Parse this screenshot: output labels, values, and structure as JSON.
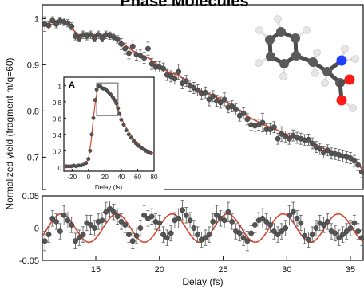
{
  "figure": {
    "title_fragment": "Phase Molecules"
  },
  "chart_data": [
    {
      "id": "main",
      "type": "scatter",
      "xlabel": "",
      "ylabel": "Normalized yield (fragment m/q=60)",
      "xlim": [
        10.8,
        36.0
      ],
      "ylim": [
        0.63,
        1.03
      ],
      "yticks": [
        0.7,
        0.8,
        0.9,
        1
      ],
      "ytick_labels": [
        "0.7",
        "0.8",
        "0.9",
        "1"
      ],
      "series": [
        {
          "kind": "points-with-errorbars",
          "color": "#555555",
          "x": [
            11.0,
            11.3,
            11.6,
            11.9,
            12.2,
            12.5,
            12.8,
            13.1,
            13.4,
            13.7,
            14.0,
            14.3,
            14.6,
            14.9,
            15.2,
            15.5,
            15.8,
            16.1,
            16.4,
            16.7,
            17.0,
            17.3,
            17.6,
            17.9,
            18.2,
            18.5,
            18.8,
            19.1,
            19.4,
            19.7,
            20.0,
            20.3,
            20.6,
            20.9,
            21.2,
            21.5,
            21.8,
            22.1,
            22.4,
            22.7,
            23.0,
            23.3,
            23.6,
            23.9,
            24.2,
            24.5,
            24.8,
            25.1,
            25.4,
            25.7,
            26.0,
            26.3,
            26.6,
            26.9,
            27.2,
            27.5,
            27.8,
            28.1,
            28.4,
            28.7,
            29.0,
            29.3,
            29.6,
            29.9,
            30.2,
            30.5,
            30.8,
            31.1,
            31.4,
            31.7,
            32.0,
            32.3,
            32.6,
            32.9,
            33.2,
            33.5,
            33.8,
            34.1,
            34.4,
            34.7,
            35.0,
            35.3,
            35.6,
            35.9
          ],
          "y": [
            0.988,
            0.985,
            0.996,
            0.988,
            0.995,
            0.993,
            0.99,
            0.983,
            0.962,
            0.958,
            0.965,
            0.962,
            0.965,
            0.958,
            0.965,
            0.958,
            0.965,
            0.963,
            0.96,
            0.955,
            0.945,
            0.935,
            0.925,
            0.94,
            0.922,
            0.92,
            0.915,
            0.935,
            0.902,
            0.895,
            0.895,
            0.892,
            0.878,
            0.875,
            0.87,
            0.885,
            0.86,
            0.865,
            0.855,
            0.85,
            0.845,
            0.838,
            0.84,
            0.825,
            0.832,
            0.822,
            0.818,
            0.825,
            0.808,
            0.81,
            0.803,
            0.79,
            0.795,
            0.782,
            0.77,
            0.768,
            0.77,
            0.775,
            0.76,
            0.76,
            0.765,
            0.74,
            0.75,
            0.745,
            0.74,
            0.747,
            0.742,
            0.74,
            0.737,
            0.738,
            0.73,
            0.722,
            0.718,
            0.71,
            0.715,
            0.708,
            0.707,
            0.705,
            0.702,
            0.7,
            0.698,
            0.692,
            0.683,
            0.668
          ],
          "err": [
            0.016,
            0.008,
            0.008,
            0.008,
            0.008,
            0.008,
            0.008,
            0.008,
            0.008,
            0.008,
            0.008,
            0.008,
            0.008,
            0.008,
            0.008,
            0.008,
            0.008,
            0.008,
            0.008,
            0.008,
            0.012,
            0.012,
            0.012,
            0.012,
            0.012,
            0.012,
            0.012,
            0.014,
            0.012,
            0.012,
            0.012,
            0.012,
            0.012,
            0.012,
            0.012,
            0.016,
            0.012,
            0.012,
            0.012,
            0.012,
            0.012,
            0.012,
            0.012,
            0.014,
            0.012,
            0.012,
            0.012,
            0.014,
            0.012,
            0.012,
            0.012,
            0.012,
            0.012,
            0.012,
            0.012,
            0.012,
            0.012,
            0.02,
            0.012,
            0.012,
            0.012,
            0.012,
            0.016,
            0.012,
            0.012,
            0.012,
            0.012,
            0.012,
            0.012,
            0.012,
            0.012,
            0.012,
            0.012,
            0.012,
            0.012,
            0.012,
            0.012,
            0.012,
            0.012,
            0.012,
            0.012,
            0.012,
            0.012,
            0.012
          ]
        },
        {
          "kind": "fit-line",
          "color": "#d9442f",
          "x": [
            10.8,
            11.5,
            12.3,
            13.0,
            13.6,
            14.2,
            15.0,
            16.0,
            16.6,
            17.2,
            17.8,
            18.5,
            19.2,
            20.0,
            20.8,
            21.5,
            22.2,
            23.0,
            23.8,
            24.5,
            25.2,
            26.0,
            26.8,
            27.5,
            28.2,
            29.0,
            29.8,
            30.5,
            31.2,
            32.0,
            32.8,
            33.5,
            34.2,
            35.0,
            35.5,
            36.0
          ],
          "y": [
            0.982,
            0.992,
            0.996,
            0.983,
            0.965,
            0.962,
            0.964,
            0.963,
            0.956,
            0.945,
            0.932,
            0.922,
            0.914,
            0.898,
            0.882,
            0.878,
            0.862,
            0.848,
            0.838,
            0.83,
            0.82,
            0.808,
            0.79,
            0.78,
            0.77,
            0.762,
            0.751,
            0.745,
            0.743,
            0.732,
            0.72,
            0.712,
            0.707,
            0.702,
            0.69,
            0.67
          ]
        }
      ]
    },
    {
      "id": "inset",
      "type": "scatter",
      "label": "A",
      "xlabel": "Delay (fs)",
      "ylabel": "",
      "xlim": [
        -30,
        80
      ],
      "ylim": [
        -0.05,
        1.1
      ],
      "xticks": [
        -20,
        0,
        20,
        40,
        60,
        80
      ],
      "xtick_labels": [
        "-20",
        "0",
        "20",
        "40",
        "60",
        "80"
      ],
      "yticks": [
        0,
        0.2,
        0.4,
        0.6,
        0.8,
        1
      ],
      "ytick_labels": [
        "0",
        "0.2",
        "0.4",
        "0.6",
        "0.8",
        "1"
      ],
      "highlight_box": {
        "x": [
          10,
          36
        ],
        "y": [
          0.63,
          1.03
        ]
      },
      "series": [
        {
          "kind": "points",
          "color": "#555555",
          "x": [
            -27,
            -24,
            -21,
            -18,
            -15,
            -12,
            -9,
            -6,
            -3,
            0,
            2,
            4,
            6,
            8,
            10,
            12,
            14,
            16,
            18,
            20,
            22,
            24,
            26,
            28,
            30,
            32,
            34,
            36,
            38,
            40,
            43,
            46,
            49,
            52,
            55,
            58,
            61,
            64,
            67,
            70,
            73,
            76
          ],
          "y": [
            0.01,
            0.01,
            0.01,
            0.02,
            0.01,
            0.02,
            0.02,
            0.03,
            0.05,
            0.1,
            0.2,
            0.4,
            0.6,
            0.82,
            0.95,
            0.99,
            1.0,
            0.97,
            0.96,
            0.96,
            0.94,
            0.92,
            0.9,
            0.88,
            0.85,
            0.82,
            0.78,
            0.72,
            0.65,
            0.58,
            0.52,
            0.45,
            0.4,
            0.36,
            0.32,
            0.29,
            0.26,
            0.24,
            0.22,
            0.2,
            0.18,
            0.17
          ]
        },
        {
          "kind": "fit-line",
          "color": "#d9442f",
          "x": [
            -30,
            -20,
            -10,
            -5,
            0,
            3,
            6,
            9,
            12,
            15,
            18,
            22,
            26,
            30,
            35,
            40,
            45,
            50,
            55,
            60,
            65,
            70,
            75,
            80
          ],
          "y": [
            0.0,
            0.0,
            0.01,
            0.03,
            0.1,
            0.3,
            0.6,
            0.85,
            0.98,
            1.0,
            0.97,
            0.94,
            0.9,
            0.84,
            0.73,
            0.6,
            0.5,
            0.42,
            0.35,
            0.3,
            0.25,
            0.22,
            0.19,
            0.17
          ]
        }
      ]
    },
    {
      "id": "residual",
      "type": "scatter",
      "xlabel": "Delay (fs)",
      "ylabel": "",
      "xlim": [
        10.8,
        36.0
      ],
      "ylim": [
        -0.05,
        0.05
      ],
      "xticks": [
        15,
        20,
        25,
        30,
        35
      ],
      "xtick_labels": [
        "15",
        "20",
        "25",
        "30",
        "35"
      ],
      "yticks": [
        0.05,
        0,
        -0.05
      ],
      "ytick_labels": [
        "0.05",
        "0",
        "-0.05"
      ],
      "series": [
        {
          "kind": "points-with-errorbars",
          "color": "#555555",
          "x": [
            11.0,
            11.3,
            11.6,
            11.9,
            12.2,
            12.5,
            12.8,
            13.1,
            13.4,
            13.7,
            14.0,
            14.3,
            14.6,
            14.9,
            15.2,
            15.5,
            15.8,
            16.1,
            16.4,
            16.7,
            17.0,
            17.3,
            17.6,
            17.9,
            18.2,
            18.5,
            18.8,
            19.1,
            19.4,
            19.7,
            20.0,
            20.3,
            20.6,
            20.9,
            21.2,
            21.5,
            21.8,
            22.1,
            22.4,
            22.7,
            23.0,
            23.3,
            23.6,
            23.9,
            24.2,
            24.5,
            24.8,
            25.1,
            25.4,
            25.7,
            26.0,
            26.3,
            26.6,
            26.9,
            27.2,
            27.5,
            27.8,
            28.1,
            28.4,
            28.7,
            29.0,
            29.3,
            29.6,
            29.9,
            30.2,
            30.5,
            30.8,
            31.1,
            31.4,
            31.7,
            32.0,
            32.3,
            32.6,
            32.9,
            33.2,
            33.5,
            33.8,
            34.1,
            34.4,
            34.7,
            35.0,
            35.3,
            35.6,
            35.9
          ],
          "y": [
            -0.02,
            -0.01,
            0.015,
            0.01,
            -0.005,
            0.02,
            0.012,
            0.005,
            -0.02,
            -0.015,
            -0.01,
            0.008,
            0.005,
            0.0,
            0.01,
            0.012,
            0.025,
            0.03,
            0.025,
            0.018,
            0.01,
            0.005,
            -0.01,
            -0.02,
            -0.012,
            0.0,
            0.02,
            0.015,
            0.018,
            0.01,
            0.008,
            -0.01,
            -0.015,
            -0.008,
            0.012,
            0.015,
            0.028,
            0.02,
            0.012,
            0.0,
            -0.01,
            -0.018,
            -0.015,
            -0.01,
            0.01,
            0.02,
            0.015,
            0.012,
            0.025,
            0.01,
            -0.005,
            -0.008,
            -0.015,
            -0.02,
            -0.008,
            0.005,
            0.012,
            0.015,
            0.01,
            0.005,
            -0.005,
            -0.01,
            -0.005,
            0.0,
            0.02,
            0.025,
            0.015,
            0.008,
            -0.012,
            -0.018,
            -0.01,
            0.0,
            0.008,
            0.005,
            0.01,
            -0.005,
            -0.008,
            -0.015,
            -0.01,
            -0.005,
            0.0,
            0.008,
            -0.005,
            -0.015
          ],
          "err": [
            0.015,
            0.012,
            0.012,
            0.012,
            0.012,
            0.015,
            0.012,
            0.012,
            0.012,
            0.012,
            0.012,
            0.012,
            0.015,
            0.012,
            0.012,
            0.012,
            0.015,
            0.012,
            0.012,
            0.012,
            0.012,
            0.012,
            0.012,
            0.012,
            0.012,
            0.012,
            0.015,
            0.012,
            0.012,
            0.012,
            0.012,
            0.012,
            0.012,
            0.012,
            0.012,
            0.015,
            0.015,
            0.012,
            0.012,
            0.012,
            0.012,
            0.012,
            0.012,
            0.012,
            0.012,
            0.015,
            0.012,
            0.012,
            0.015,
            0.012,
            0.012,
            0.012,
            0.012,
            0.015,
            0.012,
            0.012,
            0.012,
            0.015,
            0.012,
            0.012,
            0.012,
            0.012,
            0.012,
            0.012,
            0.015,
            0.015,
            0.012,
            0.012,
            0.012,
            0.012,
            0.012,
            0.012,
            0.012,
            0.012,
            0.012,
            0.012,
            0.012,
            0.012,
            0.012,
            0.012,
            0.012,
            0.012,
            0.012,
            0.012
          ]
        },
        {
          "kind": "fit-line-sinusoid",
          "color": "#d9442f",
          "amplitude": 0.022,
          "period_fs": 4.35,
          "phase_peak_fs": 12.3,
          "decay": 0.0
        }
      ]
    }
  ],
  "molecule": {
    "name_hidden": true,
    "atom_colors": {
      "carbon": "#5a5a5a",
      "hydrogen": "#e6e6e6",
      "nitrogen": "#1f3fff",
      "oxygen": "#ff1a1a"
    }
  }
}
